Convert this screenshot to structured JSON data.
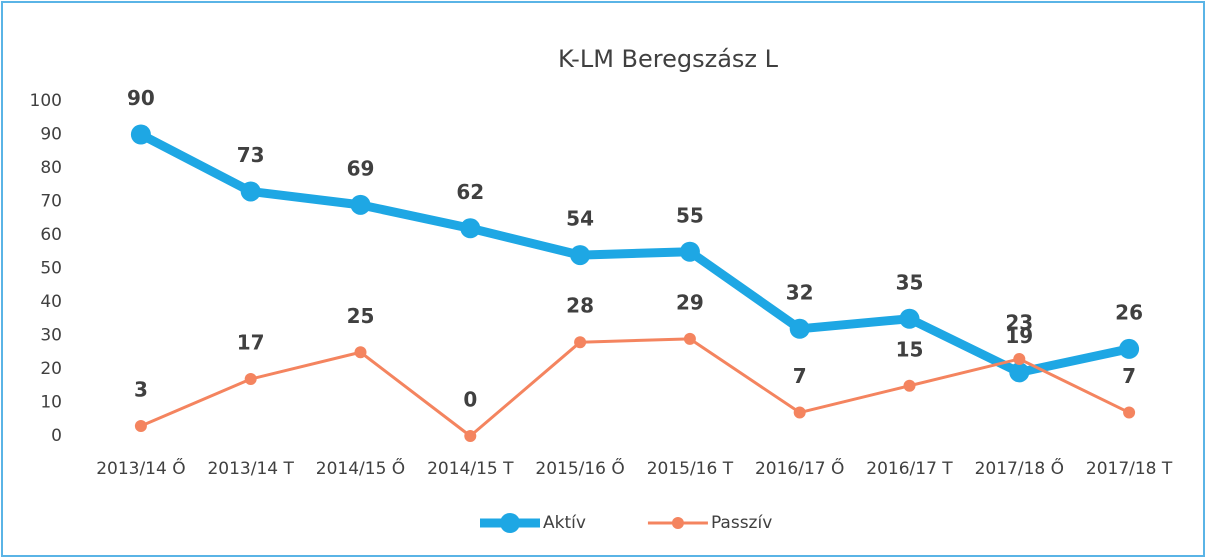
{
  "chart_data": {
    "type": "line",
    "title": "K-LM Beregszász L",
    "categories": [
      "2013/14 Ő",
      "2013/14 T",
      "2014/15 Ő",
      "2014/15 T",
      "2015/16 Ő",
      "2015/16 T",
      "2016/17 Ő",
      "2016/17 T",
      "2017/18 Ő",
      "2017/18 T"
    ],
    "series": [
      {
        "name": "Aktív",
        "color": "#1ea7e4",
        "values": [
          90,
          73,
          69,
          62,
          54,
          55,
          32,
          35,
          19,
          26
        ]
      },
      {
        "name": "Passzív",
        "color": "#f4845f",
        "values": [
          3,
          17,
          25,
          0,
          28,
          29,
          7,
          15,
          23,
          7
        ]
      }
    ],
    "ylim": [
      0,
      100
    ],
    "yticks": [
      0,
      10,
      20,
      30,
      40,
      50,
      60,
      70,
      80,
      90,
      100
    ],
    "grid": false,
    "legend": "bottom"
  }
}
